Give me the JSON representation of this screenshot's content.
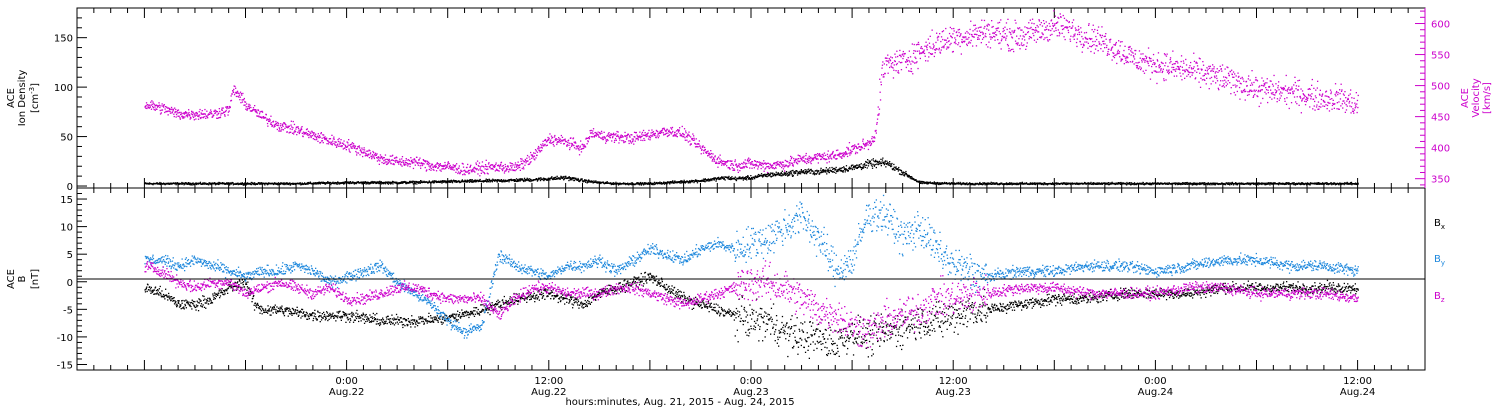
{
  "chart_data": [
    {
      "type": "scatter",
      "panel": "top",
      "left_axis": {
        "label_lines": [
          "ACE",
          "Ion Density"
        ],
        "unit_base": "[cm",
        "unit_sup": "-3",
        "unit_end": "]",
        "ylim": [
          -2,
          180
        ],
        "major_ticks": [
          0,
          50,
          100,
          150
        ],
        "tick_labels": [
          "0",
          "50",
          "100",
          "150"
        ],
        "color": "#000000"
      },
      "right_axis": {
        "label_lines": [
          "ACE",
          "Velocity",
          "[km/s]"
        ],
        "ylim": [
          335,
          625
        ],
        "major_ticks": [
          350,
          400,
          450,
          500,
          550,
          600
        ],
        "tick_labels": [
          "350",
          "400",
          "450",
          "500",
          "550",
          "600"
        ],
        "color": "#cc00cc"
      },
      "series": [
        {
          "key": "density",
          "axis": "left",
          "color": "#000000",
          "x": [
            0,
            6,
            12,
            18,
            24,
            30,
            36,
            42,
            46,
            48,
            50,
            52,
            54,
            56,
            58,
            60,
            62,
            64,
            66,
            67,
            68,
            69,
            70,
            72,
            74,
            76,
            78,
            80,
            84,
            86,
            88,
            92,
            96,
            100,
            104,
            108,
            112,
            116,
            120,
            124,
            128,
            132,
            136,
            140,
            144
          ],
          "y": [
            3,
            3,
            3,
            3,
            4,
            4,
            5,
            6,
            7,
            8,
            9,
            6,
            4,
            3,
            3,
            3,
            4,
            5,
            6,
            7,
            8,
            9,
            8,
            9,
            12,
            13,
            15,
            15,
            19,
            23,
            24,
            4,
            3,
            3,
            3,
            3,
            3,
            3,
            3,
            3,
            3,
            3,
            3,
            3,
            3
          ]
        },
        {
          "key": "velocity",
          "axis": "right",
          "color": "#cc00cc",
          "x": [
            0,
            2,
            4,
            6,
            8,
            10,
            10.5,
            11,
            12,
            14,
            16,
            18,
            20,
            22,
            24,
            26,
            28,
            30,
            32,
            34,
            36,
            38,
            40,
            42,
            44,
            46,
            48,
            50,
            52,
            53,
            54,
            56,
            58,
            60,
            62,
            64,
            66,
            68,
            70,
            72,
            74,
            76,
            78,
            80,
            82,
            84,
            86,
            86.6,
            87,
            87.5,
            88,
            90,
            92,
            94,
            96,
            98,
            100,
            102,
            104,
            106,
            108,
            110,
            112,
            114,
            116,
            118,
            120,
            122,
            124,
            126,
            128,
            130,
            132,
            134,
            136,
            138,
            140,
            142,
            144
          ],
          "y": [
            470,
            465,
            455,
            455,
            455,
            462,
            495,
            488,
            470,
            450,
            436,
            430,
            420,
            412,
            405,
            395,
            383,
            378,
            378,
            372,
            370,
            365,
            368,
            370,
            368,
            385,
            415,
            410,
            400,
            425,
            420,
            418,
            416,
            422,
            428,
            423,
            400,
            380,
            372,
            375,
            372,
            375,
            382,
            385,
            388,
            398,
            408,
            420,
            450,
            520,
            535,
            540,
            555,
            568,
            578,
            582,
            588,
            582,
            580,
            588,
            598,
            590,
            580,
            570,
            555,
            540,
            535,
            530,
            525,
            520,
            512,
            505,
            495,
            492,
            490,
            485,
            480,
            480,
            468
          ]
        }
      ]
    },
    {
      "type": "scatter",
      "panel": "bottom",
      "left_axis": {
        "label_lines": [
          "ACE",
          "B",
          "[nT]"
        ],
        "ylim": [
          -16,
          17
        ],
        "major_ticks": [
          -15,
          -10,
          -5,
          0,
          5,
          10,
          15
        ],
        "tick_labels": [
          "-15",
          "-10",
          "-5",
          "0",
          "5",
          "10",
          "15"
        ],
        "color": "#000000"
      },
      "legend_placement": "right",
      "series": [
        {
          "key": "bx",
          "name_base": "B",
          "name_sub": "x",
          "color": "#000000",
          "x": [
            0,
            2,
            4,
            6,
            8,
            10,
            12,
            13,
            14,
            16,
            20,
            24,
            28,
            32,
            36,
            40,
            44,
            48,
            50,
            52,
            54,
            56,
            58,
            60,
            62,
            64,
            66,
            68,
            70,
            72,
            74,
            76,
            78,
            80,
            82,
            84,
            86,
            88,
            90,
            92,
            94,
            96,
            98,
            100,
            104,
            108,
            112,
            116,
            120,
            124,
            128,
            132,
            136,
            140,
            144
          ],
          "y": [
            -1,
            -2,
            -4,
            -4,
            -3,
            -1,
            0,
            -4,
            -5,
            -5,
            -6,
            -6,
            -7,
            -7,
            -6.5,
            -5,
            -3,
            -2,
            -3,
            -4,
            -2,
            -1,
            0,
            1,
            -1,
            -3,
            -4,
            -5,
            -6,
            -7,
            -7,
            -9,
            -10,
            -10,
            -11,
            -9,
            -10,
            -9,
            -8,
            -7,
            -7,
            -6,
            -5,
            -5,
            -4,
            -3,
            -3,
            -2,
            -2,
            -2,
            -1,
            -1,
            -1,
            -1,
            -1
          ]
        },
        {
          "key": "by",
          "name_base": "B",
          "name_sub": "y",
          "color": "#1e88dd",
          "x": [
            0,
            2,
            4,
            6,
            8,
            10,
            12,
            14,
            16,
            18,
            20,
            22,
            24,
            26,
            28,
            30,
            32,
            34,
            36,
            38,
            40,
            42,
            44,
            46,
            48,
            50,
            52,
            54,
            56,
            58,
            60,
            62,
            64,
            66,
            68,
            70,
            72,
            74,
            76,
            78,
            80,
            82,
            84,
            86,
            88,
            90,
            92,
            94,
            96,
            100,
            104,
            108,
            112,
            116,
            120,
            124,
            128,
            132,
            136,
            140,
            144
          ],
          "y": [
            4,
            4,
            3,
            4,
            3,
            2,
            1,
            2,
            2,
            3,
            2,
            0,
            1,
            2,
            3,
            0,
            -2,
            -4,
            -7,
            -9,
            -8,
            5,
            3,
            2,
            1,
            3,
            3,
            4,
            2,
            4,
            6,
            5,
            4,
            6,
            7,
            6,
            7,
            8,
            10,
            12,
            8,
            2,
            4,
            13,
            12,
            8,
            10,
            6,
            3,
            1,
            2,
            2,
            3,
            3,
            2,
            3,
            4,
            4,
            3,
            3,
            2
          ]
        },
        {
          "key": "bz",
          "name_base": "B",
          "name_sub": "z",
          "color": "#cc00cc",
          "x": [
            0,
            2,
            4,
            6,
            8,
            10,
            12,
            14,
            16,
            18,
            20,
            22,
            24,
            26,
            28,
            30,
            32,
            34,
            36,
            38,
            40,
            42,
            44,
            46,
            48,
            50,
            52,
            54,
            56,
            58,
            60,
            62,
            64,
            66,
            68,
            70,
            72,
            74,
            76,
            78,
            80,
            82,
            84,
            86,
            88,
            90,
            92,
            94,
            96,
            100,
            104,
            108,
            112,
            116,
            120,
            124,
            128,
            132,
            136,
            140,
            144
          ],
          "y": [
            3,
            2,
            0,
            -1,
            0,
            0,
            -2,
            -1,
            0,
            -1,
            -2,
            -1,
            -3,
            -3,
            -2,
            -1,
            -1,
            -2,
            -3,
            -3,
            -3,
            -6,
            -3,
            -1,
            -1,
            -2,
            -2,
            -2,
            -1,
            -1,
            -2,
            -3,
            -4,
            -3,
            -2,
            -1,
            0,
            0,
            -1,
            -3,
            -5,
            -6,
            -8,
            -9,
            -7,
            -6,
            -5,
            -3,
            -3,
            -2,
            -1,
            -1,
            -2,
            -2,
            -2,
            -1,
            -1,
            -2,
            -2,
            -2,
            -3
          ]
        }
      ]
    }
  ],
  "x_axis": {
    "range": [
      -8,
      152
    ],
    "major_ticks": [
      0,
      12,
      24,
      36,
      48,
      60,
      72,
      84,
      96,
      108,
      120,
      132,
      144
    ],
    "tick_labels": [
      {
        "x": 24,
        "time": "0:00",
        "date": "Aug.22"
      },
      {
        "x": 48,
        "time": "12:00",
        "date": "Aug.22"
      },
      {
        "x": 72,
        "time": "0:00",
        "date": "Aug.23"
      },
      {
        "x": 96,
        "time": "12:00",
        "date": "Aug.23"
      },
      {
        "x": 120,
        "time": "0:00",
        "date": "Aug.24"
      },
      {
        "x": 144,
        "time": "12:00",
        "date": "Aug.24"
      }
    ],
    "title": "hours:minutes, Aug. 21, 2015 - Aug. 24, 2015"
  }
}
